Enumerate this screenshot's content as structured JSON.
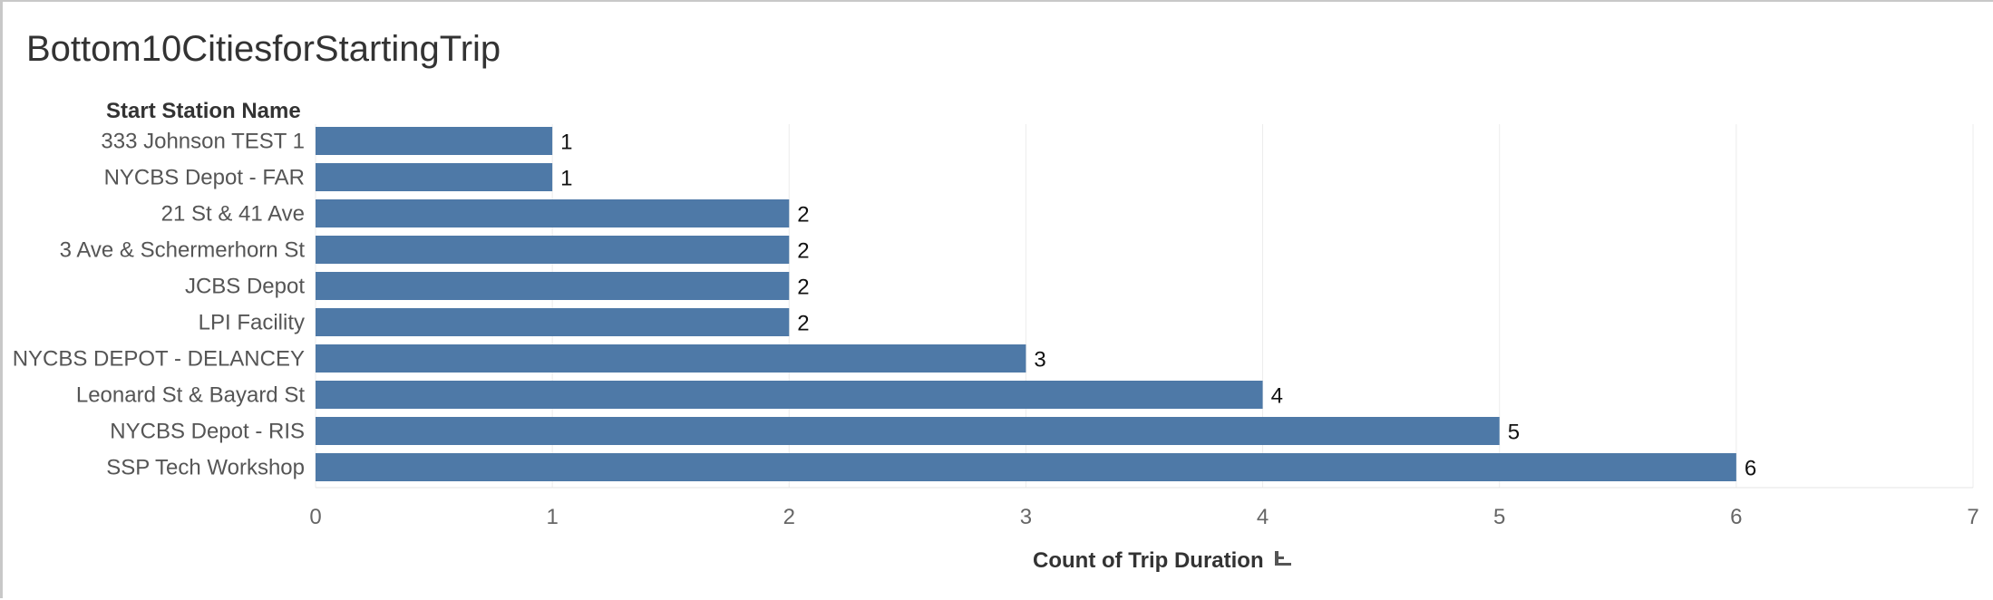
{
  "chart_data": {
    "type": "bar",
    "orientation": "horizontal",
    "title": "Bottom10CitiesforStartingTrip",
    "row_header": "Start Station Name",
    "xlabel": "Count of Trip Duration",
    "categories": [
      "333 Johnson TEST 1",
      "NYCBS Depot - FAR",
      "21 St & 41 Ave",
      "3 Ave & Schermerhorn St",
      "JCBS Depot",
      "LPI Facility",
      "NYCBS DEPOT - DELANCEY",
      "Leonard St & Bayard St",
      "NYCBS Depot - RIS",
      "SSP Tech Workshop"
    ],
    "values": [
      1,
      1,
      2,
      2,
      2,
      2,
      3,
      4,
      5,
      6
    ],
    "xlim": [
      0,
      7
    ],
    "xticks": [
      "0",
      "1",
      "2",
      "3",
      "4",
      "5",
      "6",
      "7"
    ],
    "grid": "vertical",
    "data_labels": true,
    "colors": {
      "bar": "#4e79a7",
      "grid": "#ececec",
      "frame_border": "#c8c8c8"
    },
    "sort_icon": "sort-descending-icon"
  }
}
